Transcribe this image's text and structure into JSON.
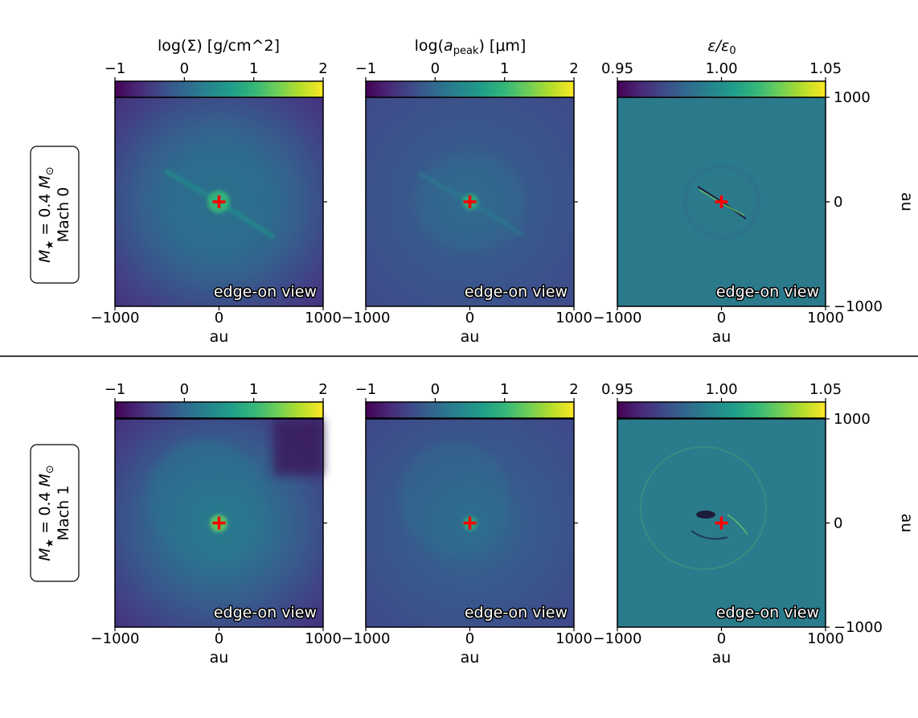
{
  "chart_data": [
    {
      "type": "heatmap",
      "name": "surface-density-mach0",
      "colorbar_label": "log(Σ) [g/cm^2]",
      "colorbar_ticks": [
        "−1",
        "0",
        "1",
        "2"
      ],
      "colorbar_range": [
        -1,
        2
      ],
      "colormap": "viridis",
      "x_ticks": [
        "−1000",
        "0",
        "1000"
      ],
      "xlabel": "au",
      "xlim": [
        -1000,
        1000
      ],
      "ylim": [
        -1000,
        1000
      ],
      "annotation": "edge-on view"
    },
    {
      "type": "heatmap",
      "name": "grain-size-mach0",
      "colorbar_label_parts": [
        "log(",
        "a",
        "peak",
        ")  [μm]"
      ],
      "colorbar_ticks": [
        "−1",
        "0",
        "1",
        "2"
      ],
      "colorbar_range": [
        -1,
        2
      ],
      "colormap": "viridis",
      "x_ticks": [
        "−1000",
        "0",
        "1000"
      ],
      "xlabel": "au",
      "xlim": [
        -1000,
        1000
      ],
      "ylim": [
        -1000,
        1000
      ],
      "annotation": "edge-on view"
    },
    {
      "type": "heatmap",
      "name": "dust-ratio-mach0",
      "colorbar_label_parts": [
        "ε/ε",
        "0"
      ],
      "colorbar_ticks": [
        "0.95",
        "1.00",
        "1.05"
      ],
      "colorbar_range": [
        0.95,
        1.05
      ],
      "colormap": "viridis",
      "x_ticks": [
        "−1000",
        "0",
        "1000"
      ],
      "xlabel": "au",
      "y_ticks": [
        "1000",
        "0",
        "−1000"
      ],
      "ylabel": "au",
      "xlim": [
        -1000,
        1000
      ],
      "ylim": [
        -1000,
        1000
      ],
      "annotation": "edge-on view"
    },
    {
      "type": "heatmap",
      "name": "surface-density-mach1",
      "colorbar_ticks": [
        "−1",
        "0",
        "1",
        "2"
      ],
      "colorbar_range": [
        -1,
        2
      ],
      "colormap": "viridis",
      "x_ticks": [
        "−1000",
        "0",
        "1000"
      ],
      "xlabel": "au",
      "xlim": [
        -1000,
        1000
      ],
      "ylim": [
        -1000,
        1000
      ],
      "annotation": "edge-on view"
    },
    {
      "type": "heatmap",
      "name": "grain-size-mach1",
      "colorbar_ticks": [
        "−1",
        "0",
        "1",
        "2"
      ],
      "colorbar_range": [
        -1,
        2
      ],
      "colormap": "viridis",
      "x_ticks": [
        "−1000",
        "0",
        "1000"
      ],
      "xlabel": "au",
      "xlim": [
        -1000,
        1000
      ],
      "ylim": [
        -1000,
        1000
      ],
      "annotation": "edge-on view"
    },
    {
      "type": "heatmap",
      "name": "dust-ratio-mach1",
      "colorbar_ticks": [
        "0.95",
        "1.00",
        "1.05"
      ],
      "colorbar_range": [
        0.95,
        1.05
      ],
      "colormap": "viridis",
      "x_ticks": [
        "−1000",
        "0",
        "1000"
      ],
      "xlabel": "au",
      "y_ticks": [
        "1000",
        "0",
        "−1000"
      ],
      "ylabel": "au",
      "xlim": [
        -1000,
        1000
      ],
      "ylim": [
        -1000,
        1000
      ],
      "annotation": "edge-on view"
    }
  ],
  "rows": [
    {
      "mass_label_parts": [
        "M",
        "★",
        " = 0.4 ",
        "M",
        "⊙"
      ],
      "mach_label": "Mach 0"
    },
    {
      "mass_label_parts": [
        "M",
        "★",
        " = 0.4 ",
        "M",
        "⊙"
      ],
      "mach_label": "Mach 1"
    }
  ],
  "marker": {
    "symbol": "+",
    "position_au": [
      0,
      0
    ],
    "color": "#ff0000"
  },
  "colors": {
    "viridis": [
      "#440154",
      "#482878",
      "#3e4a89",
      "#31688e",
      "#26828e",
      "#1f9e89",
      "#35b779",
      "#6ece58",
      "#b5de2b",
      "#fde725"
    ],
    "marker": "#ff0000",
    "separator": "#000000"
  }
}
